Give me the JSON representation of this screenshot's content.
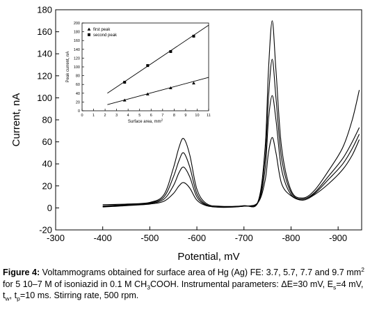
{
  "main": {
    "chart_data": {
      "type": "line",
      "xlabel": "Potential, mV",
      "ylabel": "Current, nA",
      "xlim": [
        -300,
        -950
      ],
      "ylim": [
        -20,
        180
      ],
      "x_ticks": [
        "-300",
        "-400",
        "-500",
        "-600",
        "-700",
        "-800",
        "-900"
      ],
      "y_ticks": [
        "-20",
        "0",
        "20",
        "40",
        "60",
        "80",
        "100",
        "120",
        "140",
        "160",
        "180"
      ],
      "series": [
        {
          "values": [
            [
              -400,
              0.8
            ],
            [
              -450,
              2.0
            ],
            [
              -500,
              3.5
            ],
            [
              -530,
              6
            ],
            [
              -550,
              13
            ],
            [
              -562,
              20
            ],
            [
              -572,
              23
            ],
            [
              -585,
              18
            ],
            [
              -600,
              7
            ],
            [
              -620,
              2
            ],
            [
              -650,
              0.8
            ],
            [
              -700,
              1.5
            ],
            [
              -730,
              5
            ],
            [
              -745,
              25
            ],
            [
              -752,
              50
            ],
            [
              -760,
              64
            ],
            [
              -768,
              50
            ],
            [
              -780,
              22
            ],
            [
              -800,
              11
            ],
            [
              -825,
              7
            ],
            [
              -850,
              12
            ],
            [
              -880,
              22
            ],
            [
              -910,
              35
            ],
            [
              -930,
              48
            ],
            [
              -945,
              62
            ]
          ]
        },
        {
          "values": [
            [
              -400,
              1.2
            ],
            [
              -450,
              2.5
            ],
            [
              -500,
              4
            ],
            [
              -530,
              8
            ],
            [
              -550,
              20
            ],
            [
              -562,
              32
            ],
            [
              -572,
              37
            ],
            [
              -585,
              28
            ],
            [
              -600,
              10
            ],
            [
              -620,
              2.5
            ],
            [
              -650,
              0.5
            ],
            [
              -700,
              1.5
            ],
            [
              -730,
              5
            ],
            [
              -745,
              35
            ],
            [
              -752,
              80
            ],
            [
              -760,
              102
            ],
            [
              -768,
              80
            ],
            [
              -780,
              35
            ],
            [
              -800,
              12
            ],
            [
              -825,
              8
            ],
            [
              -850,
              13
            ],
            [
              -880,
              26
            ],
            [
              -910,
              40
            ],
            [
              -930,
              54
            ],
            [
              -945,
              67
            ]
          ]
        },
        {
          "values": [
            [
              -400,
              1.8
            ],
            [
              -450,
              3
            ],
            [
              -500,
              4.5
            ],
            [
              -530,
              10
            ],
            [
              -550,
              28
            ],
            [
              -562,
              43
            ],
            [
              -572,
              50
            ],
            [
              -585,
              37
            ],
            [
              -600,
              13
            ],
            [
              -620,
              3
            ],
            [
              -650,
              0.8
            ],
            [
              -700,
              1.8
            ],
            [
              -730,
              5
            ],
            [
              -745,
              45
            ],
            [
              -752,
              100
            ],
            [
              -760,
              135
            ],
            [
              -768,
              100
            ],
            [
              -780,
              45
            ],
            [
              -800,
              14
            ],
            [
              -825,
              8
            ],
            [
              -850,
              14
            ],
            [
              -880,
              29
            ],
            [
              -910,
              45
            ],
            [
              -930,
              60
            ],
            [
              -945,
              73
            ]
          ]
        },
        {
          "values": [
            [
              -400,
              3
            ],
            [
              -450,
              3.5
            ],
            [
              -500,
              5
            ],
            [
              -530,
              12
            ],
            [
              -550,
              36
            ],
            [
              -562,
              55
            ],
            [
              -572,
              63
            ],
            [
              -585,
              48
            ],
            [
              -600,
              17
            ],
            [
              -620,
              4
            ],
            [
              -650,
              1.5
            ],
            [
              -700,
              2
            ],
            [
              -730,
              6
            ],
            [
              -745,
              55
            ],
            [
              -752,
              125
            ],
            [
              -760,
              170
            ],
            [
              -768,
              125
            ],
            [
              -780,
              55
            ],
            [
              -800,
              16
            ],
            [
              -825,
              9
            ],
            [
              -850,
              16
            ],
            [
              -880,
              34
            ],
            [
              -910,
              55
            ],
            [
              -930,
              80
            ],
            [
              -945,
              107
            ]
          ]
        }
      ]
    },
    "inset_chart_data": {
      "type": "scatter",
      "xlabel": "Surface area, mm",
      "xlabel_sup": "2",
      "ylabel": "Peak current, nA",
      "xlim": [
        0,
        11
      ],
      "ylim": [
        0,
        200
      ],
      "x_ticks": [
        "0",
        "1",
        "2",
        "3",
        "4",
        "5",
        "6",
        "7",
        "8",
        "9",
        "10",
        "11"
      ],
      "y_ticks": [
        "0",
        "20",
        "40",
        "60",
        "80",
        "100",
        "120",
        "140",
        "160",
        "180",
        "200"
      ],
      "series": [
        {
          "name": "first peak",
          "x": [
            3.7,
            5.7,
            7.7,
            9.7
          ],
          "y": [
            24,
            38,
            52,
            63
          ],
          "fit": [
            [
              2.2,
              14
            ],
            [
              11,
              76
            ]
          ]
        },
        {
          "name": "second peak",
          "x": [
            3.7,
            5.7,
            7.7,
            9.7
          ],
          "y": [
            65,
            103,
            135,
            170
          ],
          "fit": [
            [
              2.2,
              40
            ],
            [
              11,
              195
            ]
          ]
        }
      ]
    }
  },
  "caption": {
    "label": "Figure 4:",
    "text_1": " Voltammograms obtained for surface area of Hg (Ag) FE: 3.7, 5.7, 7.7 and 9.7 mm",
    "sup_1": "2",
    "text_2": " for 5 10–7 M of isoniazid in 0.1 M CH",
    "sub_1": "3",
    "text_3": "COOH. Instrumental parameters: ΔE=30 mV, E",
    "sub_2": "s",
    "text_4": "=4 mV, t",
    "sub_3": "w",
    "text_5": ", t",
    "sub_4": "p",
    "text_6": "=10 ms. Stirring rate, 500 rpm."
  }
}
